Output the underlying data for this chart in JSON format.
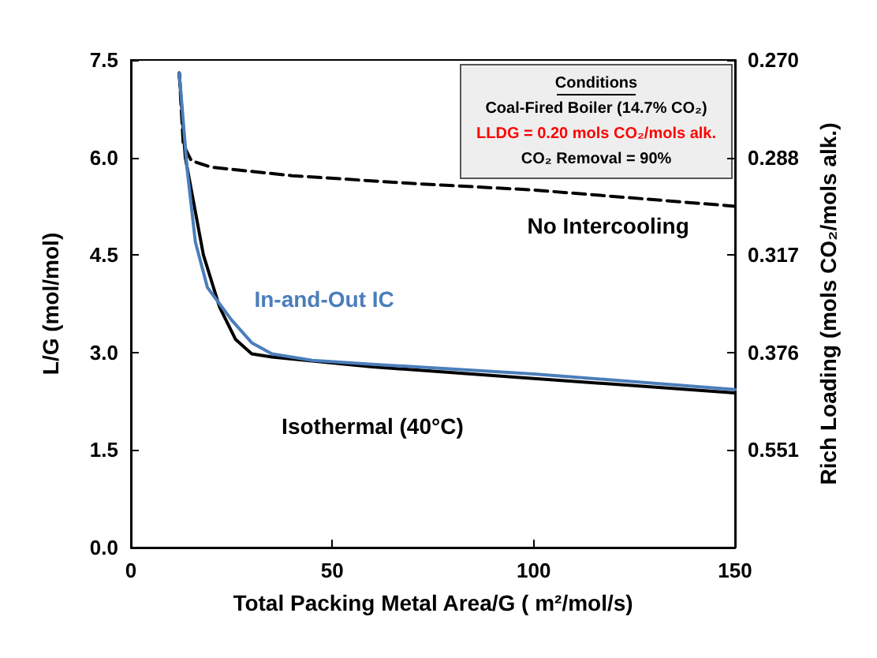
{
  "chart_data": {
    "type": "line",
    "xlabel": "Total Packing Metal Area/G ( m²/mol/s)",
    "ylabel": "L/G (mol/mol)",
    "y2label": "Rich Loading (mols CO₂/mols alk.)",
    "xlim": [
      0,
      150
    ],
    "xticks": [
      0,
      50,
      100,
      150
    ],
    "ylim": [
      0,
      7.5
    ],
    "yticks": [
      {
        "value": 0,
        "label": "0.0"
      },
      1.5,
      {
        "value": 3,
        "label": "3.0"
      },
      4.5,
      {
        "value": 6,
        "label": "6.0"
      },
      7.5
    ],
    "y2_categories": [
      "0.270",
      "0.288",
      "0.317",
      "0.376",
      "0.551",
      null
    ],
    "grid": false,
    "legend": false,
    "marker": "none",
    "series": [
      {
        "name": "No Intercooling",
        "color": "#000000",
        "line_style": "dashed",
        "x": [
          12,
          13,
          15,
          20,
          40,
          70,
          100,
          150
        ],
        "values": [
          7.3,
          6.2,
          5.95,
          5.85,
          5.72,
          5.6,
          5.5,
          5.25
        ]
      },
      {
        "name": "Isothermal (40°C)",
        "color": "#000000",
        "line_style": "solid",
        "x": [
          12,
          13.5,
          15,
          18,
          22,
          26,
          30,
          35,
          40,
          60,
          100,
          150
        ],
        "values": [
          7.3,
          6.0,
          5.5,
          4.5,
          3.7,
          3.2,
          2.98,
          2.93,
          2.9,
          2.78,
          2.6,
          2.38
        ]
      },
      {
        "name": "In-and-Out IC",
        "color": "#4a7ebb",
        "line_style": "solid",
        "x": [
          12,
          14,
          16,
          19,
          22,
          25,
          30,
          35,
          45,
          60,
          100,
          150
        ],
        "values": [
          7.3,
          5.8,
          4.7,
          4.0,
          3.75,
          3.5,
          3.15,
          2.98,
          2.88,
          2.82,
          2.67,
          2.43
        ]
      }
    ],
    "annotations": [
      "Conditions",
      "Coal-Fired Boiler (14.7% CO₂)",
      "LLDG = 0.20 mols CO₂/mols alk.",
      "CO₂ Removal = 90%"
    ]
  }
}
